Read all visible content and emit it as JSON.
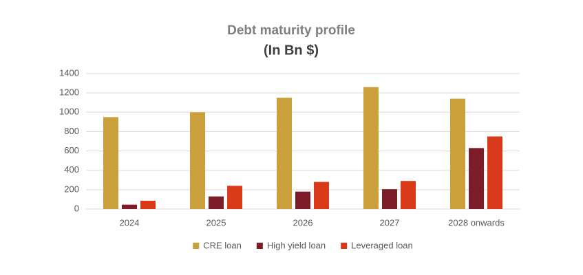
{
  "chart_data": {
    "type": "bar",
    "title": "Debt maturity profile",
    "subtitle": "(In Bn $)",
    "categories": [
      "2024",
      "2025",
      "2026",
      "2027",
      "2028 onwards"
    ],
    "series": [
      {
        "name": "CRE loan",
        "color": "#c9a03c",
        "values": [
          950,
          1000,
          1150,
          1260,
          1140
        ]
      },
      {
        "name": "High yield loan",
        "color": "#7b1c28",
        "values": [
          45,
          130,
          180,
          205,
          630
        ]
      },
      {
        "name": "Leveraged loan",
        "color": "#d93a1a",
        "values": [
          85,
          240,
          280,
          290,
          750
        ]
      }
    ],
    "ylim": [
      0,
      1400
    ],
    "yticks": [
      0,
      200,
      400,
      600,
      800,
      1000,
      1200,
      1400
    ],
    "grid": true,
    "legend": "bottom"
  }
}
